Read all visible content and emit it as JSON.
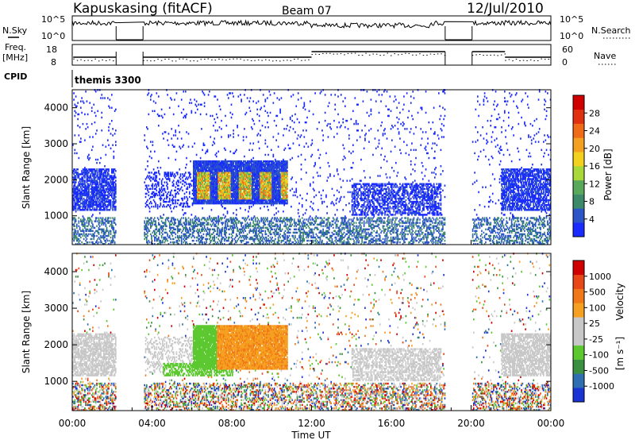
{
  "header": {
    "station": "Kapuskasing (fitACF)",
    "beam": "Beam 07",
    "date": "12/Jul/2010"
  },
  "side_labels": {
    "nsky": "N.Sky",
    "freq": "Freq.",
    "freq_unit": "[MHz]",
    "cpid": "CPID",
    "nsearch": "N.Search",
    "nave": "Nave"
  },
  "cpid_value": "themis 3300",
  "colors": {
    "power": [
      "#1a2bff",
      "#2c56c8",
      "#3c8a6a",
      "#5aa85a",
      "#a8d83a",
      "#f2d21e",
      "#f4a020",
      "#f06a18",
      "#e03010",
      "#d00000"
    ],
    "velocity": [
      "#1a33d4",
      "#2d6fb0",
      "#3a9040",
      "#5cc830",
      "#c8c8c8",
      "#c8c8c8",
      "#f5a020",
      "#f07818",
      "#e84818",
      "#d00000"
    ]
  },
  "chart_data": [
    {
      "type": "line",
      "title": "N.Sky / N.Search",
      "y_ticks": [
        "10^5",
        "10^0"
      ],
      "right_ticks": [
        "10^5",
        "10^0"
      ],
      "x_range_hours": [
        0,
        24
      ],
      "data_gaps_hours": [
        [
          2.2,
          3.55
        ],
        [
          18.7,
          20.05
        ]
      ]
    },
    {
      "type": "line",
      "title": "Freq / Nave",
      "y_ticks": [
        "18",
        "8"
      ],
      "right_ticks": [
        "60",
        "0"
      ],
      "x_range_hours": [
        0,
        24
      ],
      "data_gaps_hours": [
        [
          2.2,
          3.55
        ],
        [
          18.7,
          20.05
        ]
      ]
    },
    {
      "type": "heatmap",
      "title": "Power",
      "ylabel": "Slant Range [km]",
      "colorbar_label": "Power [dB]",
      "colorbar_ticks": [
        "28",
        "24",
        "20",
        "16",
        "12",
        "8",
        "4"
      ],
      "y_ticks": [
        1000,
        2000,
        3000,
        4000
      ],
      "ylim": [
        200,
        4500
      ],
      "x_range_hours": [
        0,
        24
      ],
      "data_gaps_hours": [
        [
          2.2,
          3.55
        ],
        [
          18.7,
          20.05
        ]
      ]
    },
    {
      "type": "heatmap",
      "title": "Velocity",
      "ylabel": "Slant Range [km]",
      "xlabel": "Time UT",
      "colorbar_label": "Velocity",
      "colorbar_unit": "[m s⁻¹]",
      "colorbar_ticks": [
        "1000",
        "500",
        "100",
        "25",
        "-25",
        "-100",
        "-500",
        "-1000"
      ],
      "y_ticks": [
        1000,
        2000,
        3000,
        4000
      ],
      "ylim": [
        200,
        4500
      ],
      "x_ticks": [
        "00:00",
        "04:00",
        "08:00",
        "12:00",
        "16:00",
        "20:00",
        "00:00"
      ],
      "x_range_hours": [
        0,
        24
      ],
      "data_gaps_hours": [
        [
          2.2,
          3.55
        ],
        [
          18.7,
          20.05
        ]
      ]
    }
  ]
}
